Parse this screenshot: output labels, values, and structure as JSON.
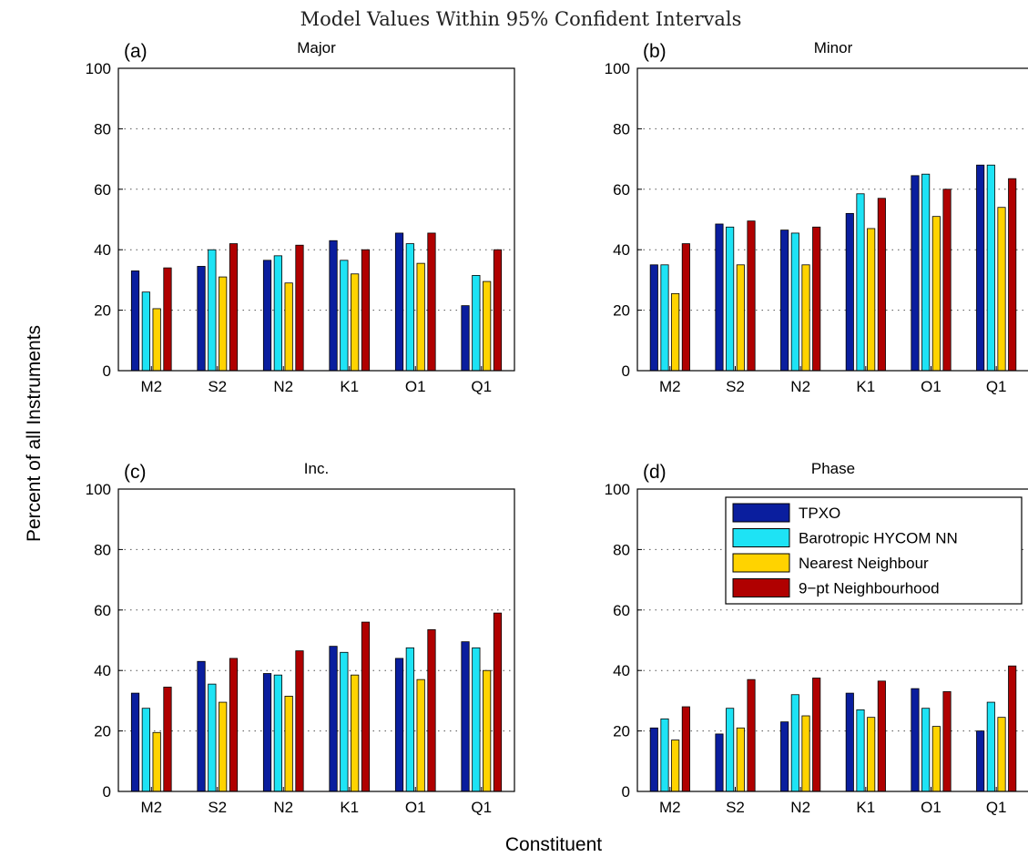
{
  "figure": {
    "title": "Model Values Within 95% Confident Intervals",
    "ylabel": "Percent of all Instruments",
    "xlabel": "Constituent"
  },
  "colors": {
    "TPXO": "#0a1e9e",
    "Barotropic HYCOM NN": "#1ee3f5",
    "Nearest Neighbour": "#ffd300",
    "9-pt Neighbourhood": "#b00000"
  },
  "legend": {
    "panel": "d",
    "placement": "top-right",
    "entries": [
      "TPXO",
      "Barotropic HYCOM NN",
      "Nearest Neighbour",
      "9−pt Neighbourhood"
    ]
  },
  "chart_data": [
    {
      "type": "bar",
      "panel_label": "(a)",
      "title": "Major",
      "categories": [
        "M2",
        "S2",
        "N2",
        "K1",
        "O1",
        "Q1"
      ],
      "ylim": [
        0,
        100
      ],
      "yticks": [
        0,
        20,
        40,
        60,
        80,
        100
      ],
      "grid": "horizontal dotted",
      "series": [
        {
          "name": "TPXO",
          "values": [
            33,
            34.5,
            36.5,
            43,
            45.5,
            21.5
          ]
        },
        {
          "name": "Barotropic HYCOM NN",
          "values": [
            26,
            40,
            38,
            36.5,
            42,
            31.5
          ]
        },
        {
          "name": "Nearest Neighbour",
          "values": [
            20.5,
            31,
            29,
            32,
            35.5,
            29.5
          ]
        },
        {
          "name": "9-pt Neighbourhood",
          "values": [
            34,
            42,
            41.5,
            40,
            45.5,
            40
          ]
        }
      ]
    },
    {
      "type": "bar",
      "panel_label": "(b)",
      "title": "Minor",
      "categories": [
        "M2",
        "S2",
        "N2",
        "K1",
        "O1",
        "Q1"
      ],
      "ylim": [
        0,
        100
      ],
      "yticks": [
        0,
        20,
        40,
        60,
        80,
        100
      ],
      "grid": "horizontal dotted",
      "series": [
        {
          "name": "TPXO",
          "values": [
            35,
            48.5,
            46.5,
            52,
            64.5,
            68
          ]
        },
        {
          "name": "Barotropic HYCOM NN",
          "values": [
            35,
            47.5,
            45.5,
            58.5,
            65,
            68
          ]
        },
        {
          "name": "Nearest Neighbour",
          "values": [
            25.5,
            35,
            35,
            47,
            51,
            54
          ]
        },
        {
          "name": "9-pt Neighbourhood",
          "values": [
            42,
            49.5,
            47.5,
            57,
            60,
            63.5
          ]
        }
      ]
    },
    {
      "type": "bar",
      "panel_label": "(c)",
      "title": "Inc.",
      "categories": [
        "M2",
        "S2",
        "N2",
        "K1",
        "O1",
        "Q1"
      ],
      "ylim": [
        0,
        100
      ],
      "yticks": [
        0,
        20,
        40,
        60,
        80,
        100
      ],
      "grid": "horizontal dotted",
      "series": [
        {
          "name": "TPXO",
          "values": [
            32.5,
            43,
            39,
            48,
            44,
            49.5
          ]
        },
        {
          "name": "Barotropic HYCOM NN",
          "values": [
            27.5,
            35.5,
            38.5,
            46,
            47.5,
            47.5
          ]
        },
        {
          "name": "Nearest Neighbour",
          "values": [
            19.5,
            29.5,
            31.5,
            38.5,
            37,
            40
          ]
        },
        {
          "name": "9-pt Neighbourhood",
          "values": [
            34.5,
            44,
            46.5,
            56,
            53.5,
            59
          ]
        }
      ]
    },
    {
      "type": "bar",
      "panel_label": "(d)",
      "title": "Phase",
      "categories": [
        "M2",
        "S2",
        "N2",
        "K1",
        "O1",
        "Q1"
      ],
      "ylim": [
        0,
        100
      ],
      "yticks": [
        0,
        20,
        40,
        60,
        80,
        100
      ],
      "grid": "horizontal dotted",
      "series": [
        {
          "name": "TPXO",
          "values": [
            21,
            19,
            23,
            32.5,
            34,
            20
          ]
        },
        {
          "name": "Barotropic HYCOM NN",
          "values": [
            24,
            27.5,
            32,
            27,
            27.5,
            29.5
          ]
        },
        {
          "name": "Nearest Neighbour",
          "values": [
            17,
            21,
            25,
            24.5,
            21.5,
            24.5
          ]
        },
        {
          "name": "9-pt Neighbourhood",
          "values": [
            28,
            37,
            37.5,
            36.5,
            33,
            41.5
          ]
        }
      ]
    }
  ]
}
